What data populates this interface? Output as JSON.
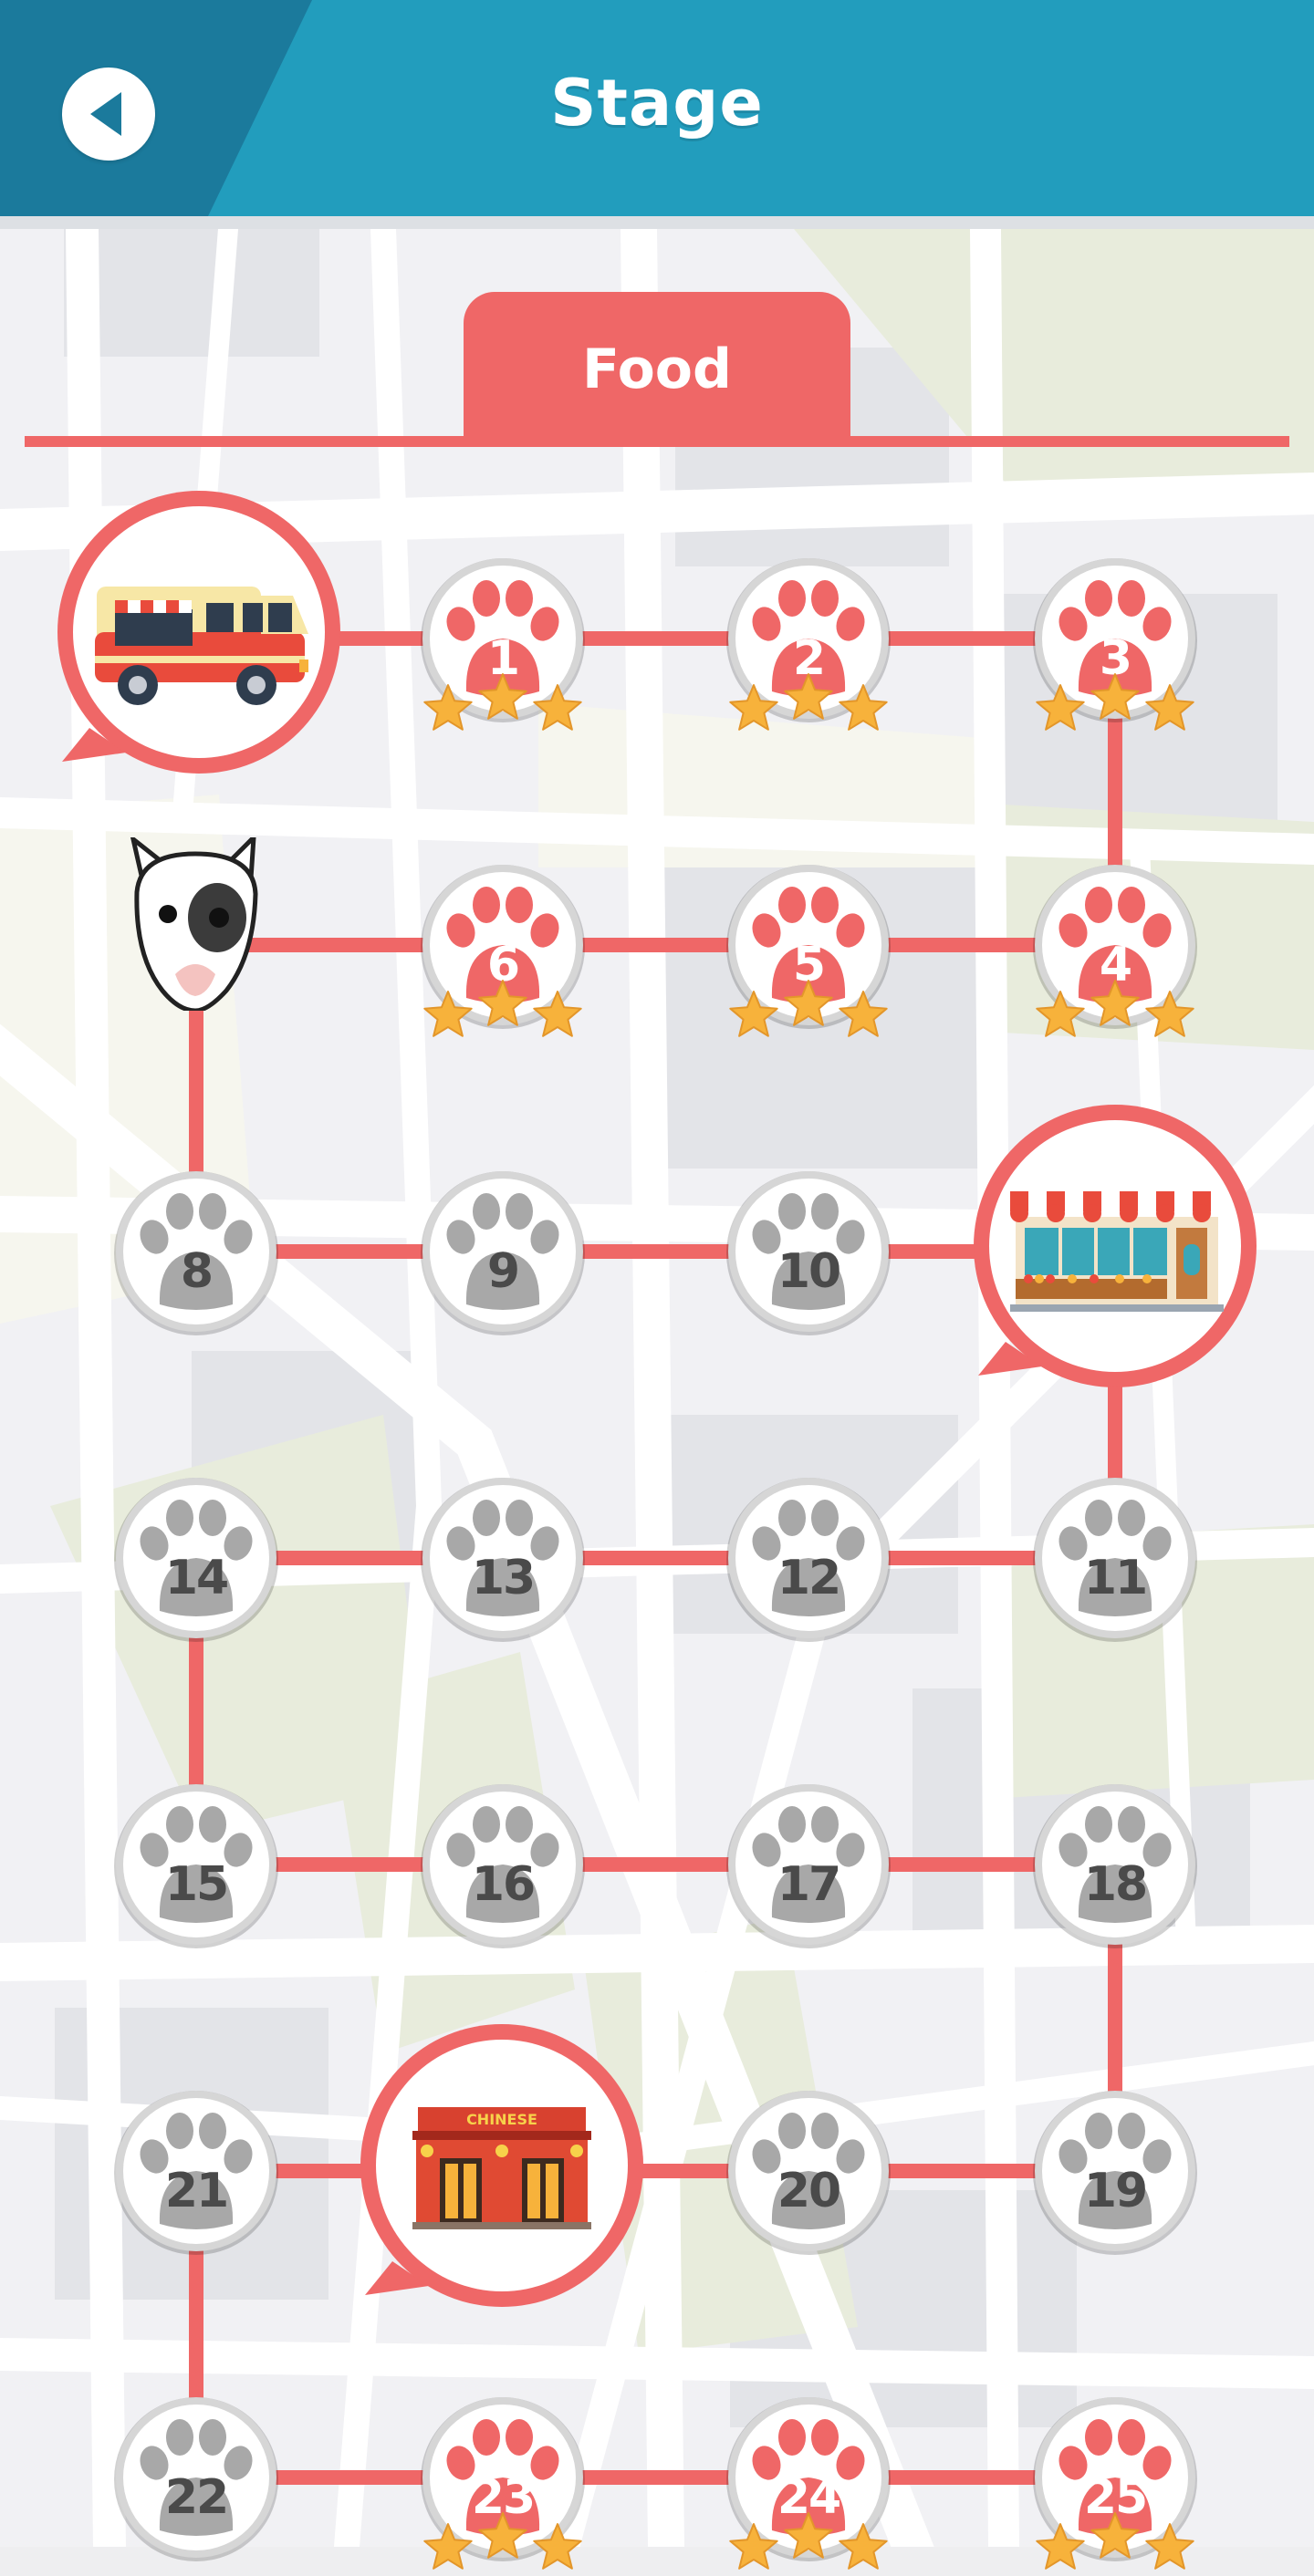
{
  "header": {
    "title": "Stage",
    "back_icon": "back-arrow-icon",
    "colors": {
      "primary": "#229dbd",
      "dark": "#1b7a9c"
    }
  },
  "category": {
    "label": "Food",
    "color": "#ef6767"
  },
  "avatar": {
    "icon": "bull-terrier-dog-icon"
  },
  "stages": [
    {
      "number": "1",
      "unlocked": true,
      "stars": 3
    },
    {
      "number": "2",
      "unlocked": true,
      "stars": 3
    },
    {
      "number": "3",
      "unlocked": true,
      "stars": 3
    },
    {
      "number": "4",
      "unlocked": true,
      "stars": 3
    },
    {
      "number": "5",
      "unlocked": true,
      "stars": 3
    },
    {
      "number": "6",
      "unlocked": true,
      "stars": 3
    },
    {
      "number": "8",
      "unlocked": false,
      "stars": 0
    },
    {
      "number": "9",
      "unlocked": false,
      "stars": 0
    },
    {
      "number": "10",
      "unlocked": false,
      "stars": 0
    },
    {
      "number": "11",
      "unlocked": false,
      "stars": 0
    },
    {
      "number": "12",
      "unlocked": false,
      "stars": 0
    },
    {
      "number": "13",
      "unlocked": false,
      "stars": 0
    },
    {
      "number": "14",
      "unlocked": false,
      "stars": 0
    },
    {
      "number": "15",
      "unlocked": false,
      "stars": 0
    },
    {
      "number": "16",
      "unlocked": false,
      "stars": 0
    },
    {
      "number": "17",
      "unlocked": false,
      "stars": 0
    },
    {
      "number": "18",
      "unlocked": false,
      "stars": 0
    },
    {
      "number": "19",
      "unlocked": false,
      "stars": 0
    },
    {
      "number": "20",
      "unlocked": false,
      "stars": 0
    },
    {
      "number": "21",
      "unlocked": false,
      "stars": 0
    },
    {
      "number": "22",
      "unlocked": false,
      "stars": 0
    },
    {
      "number": "23",
      "unlocked": true,
      "stars": 3
    },
    {
      "number": "24",
      "unlocked": true,
      "stars": 3
    },
    {
      "number": "25",
      "unlocked": true,
      "stars": 3
    }
  ],
  "landmarks": [
    {
      "icon": "food-truck-icon"
    },
    {
      "icon": "grocery-store-icon"
    },
    {
      "icon": "chinese-restaurant-icon",
      "sign": "CHINESE"
    }
  ],
  "colors": {
    "unlocked": "#ef6767",
    "locked": "#a8a8a8",
    "star": "#f7b23b",
    "path": "#ef6767"
  }
}
